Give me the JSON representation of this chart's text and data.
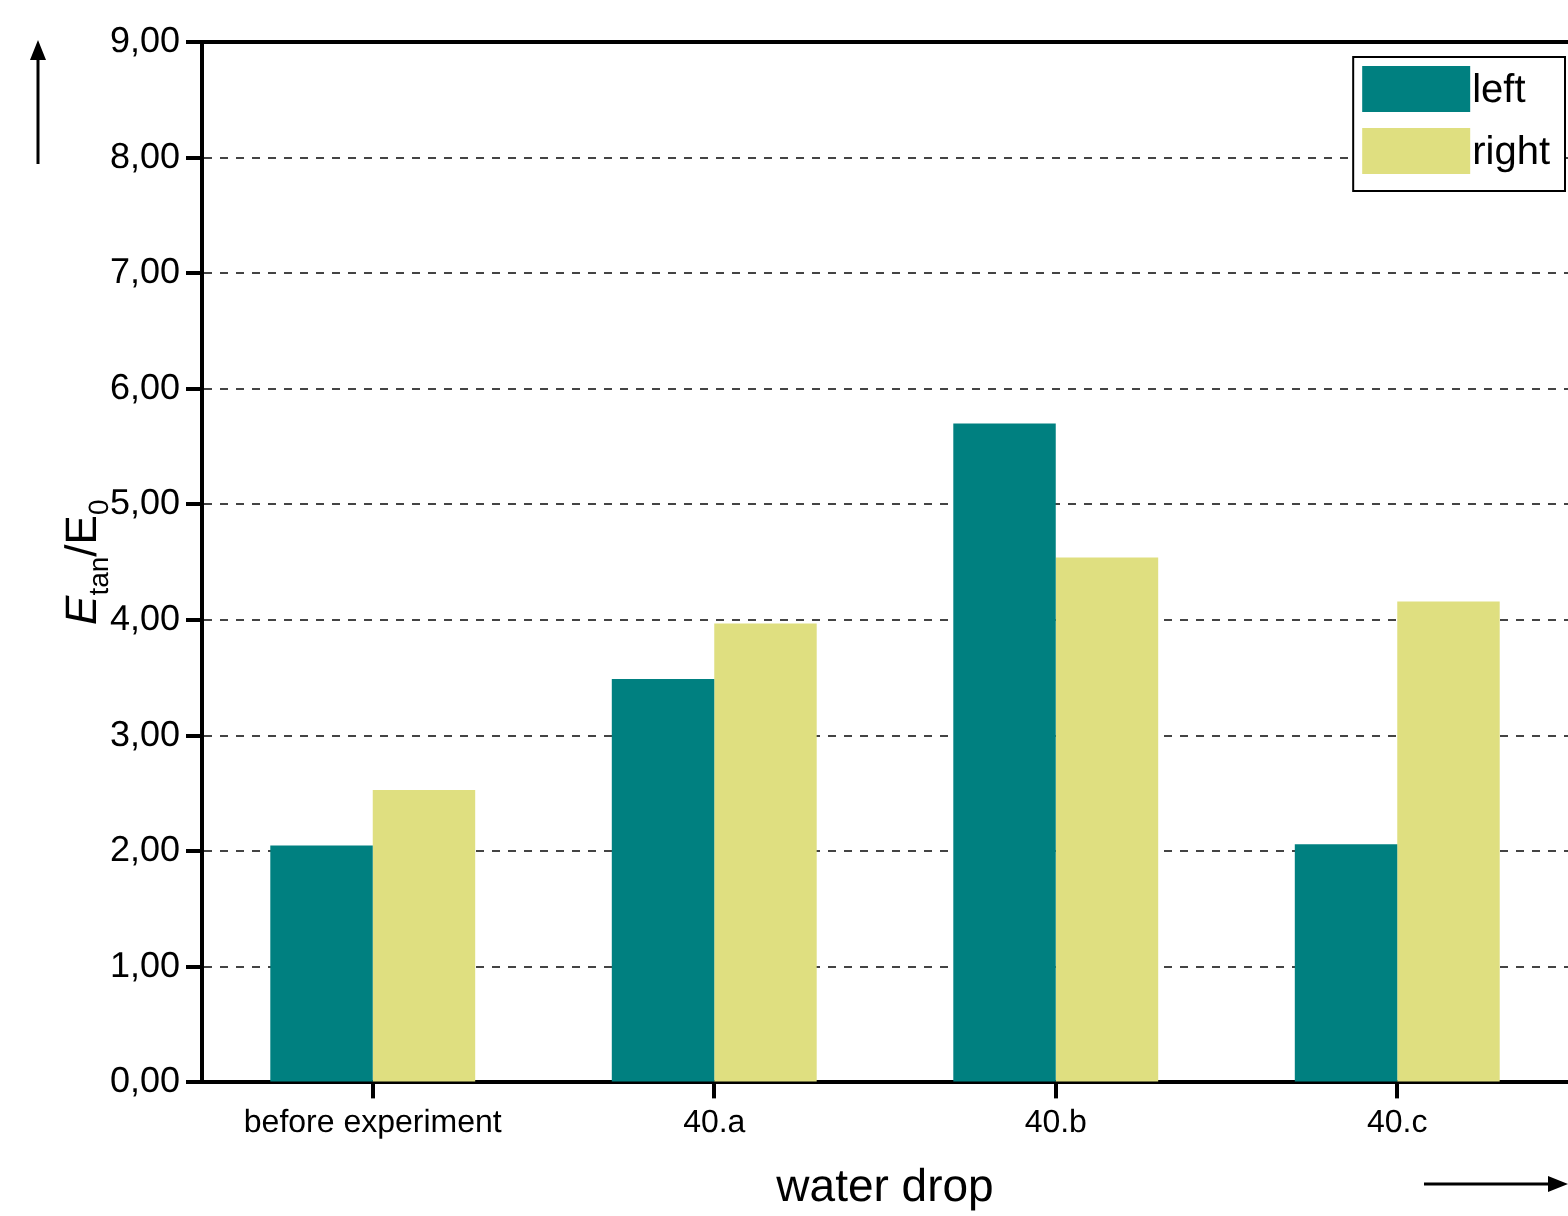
{
  "chart_data": {
    "type": "bar",
    "xlabel": "water drop",
    "ylabel": "E$_{tan}$/E$_{0}$",
    "categories": [
      "before experiment",
      "40.a",
      "40.b",
      "40.c"
    ],
    "series": [
      {
        "name": "left",
        "color": "#008080",
        "values": [
          2.05,
          3.49,
          5.7,
          2.06
        ]
      },
      {
        "name": "right",
        "color": "#dfdf80",
        "values": [
          2.53,
          3.97,
          4.54,
          4.16
        ]
      }
    ],
    "ylim": [
      0,
      9
    ],
    "yticks": [
      {
        "value": 0,
        "label": "0,00"
      },
      {
        "value": 1,
        "label": "1,00"
      },
      {
        "value": 2,
        "label": "2,00"
      },
      {
        "value": 3,
        "label": "3,00"
      },
      {
        "value": 4,
        "label": "4,00"
      },
      {
        "value": 5,
        "label": "5,00"
      },
      {
        "value": 6,
        "label": "6,00"
      },
      {
        "value": 7,
        "label": "7,00"
      },
      {
        "value": 8,
        "label": "8,00"
      },
      {
        "value": 9,
        "label": "9,00"
      }
    ],
    "grid": "y",
    "line_style": "dashed",
    "legend": "top right"
  }
}
